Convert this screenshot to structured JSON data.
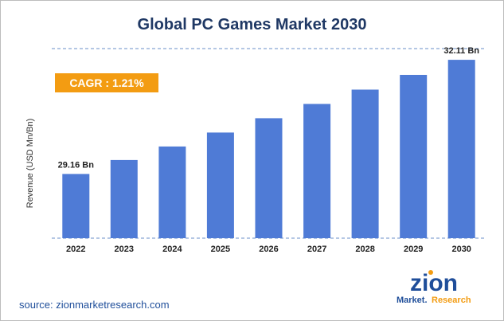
{
  "chart_data": {
    "type": "bar",
    "title": "Global PC Games Market 2030",
    "xlabel": "",
    "ylabel": "Revenue (USD Mn/Bn)",
    "categories": [
      "2022",
      "2023",
      "2024",
      "2025",
      "2026",
      "2027",
      "2028",
      "2029",
      "2030"
    ],
    "values": [
      29.16,
      29.52,
      29.87,
      30.23,
      30.6,
      30.97,
      31.34,
      31.72,
      32.11
    ],
    "ylim": [
      27.5,
      32.4
    ],
    "data_labels": [
      {
        "category": "2022",
        "text": "29.16 Bn"
      },
      {
        "category": "2030",
        "text": "32.11 Bn"
      }
    ],
    "annotation": "CAGR : 1.21%",
    "grid": false,
    "bar_color": "#4f7bd6"
  },
  "source": "source: zionmarketresearch.com",
  "logo": {
    "top": "zion",
    "bottom_left": "Market.",
    "bottom_right": "Research",
    "colors": {
      "blue": "#1f4e9a",
      "orange": "#f39c12"
    }
  }
}
